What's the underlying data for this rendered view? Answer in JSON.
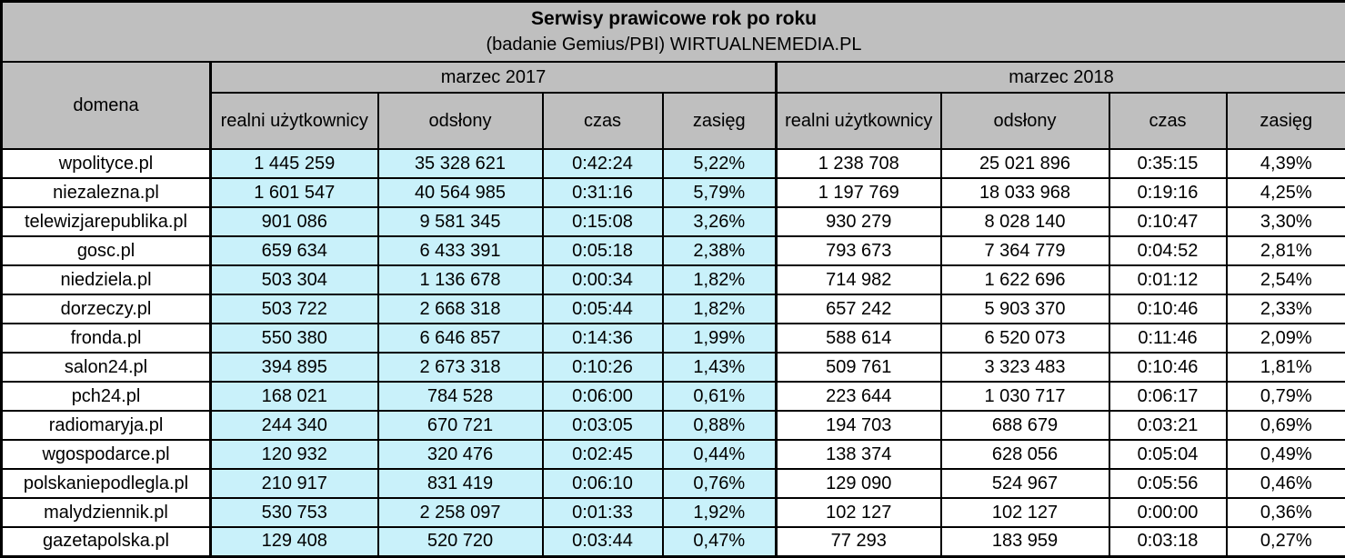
{
  "colors": {
    "header_bg": "#bfbfbf",
    "highlight_2017_bg": "#c9f1fa",
    "default_row_bg": "#ffffff",
    "border": "#000000",
    "text": "#000000"
  },
  "chart_data": {
    "type": "table",
    "title": "Serwisy prawicowe rok po roku",
    "subtitle": "(badanie Gemius/PBI) WIRTUALNEMEDIA.PL",
    "domain_column_header": "domena",
    "groups": [
      {
        "label": "marzec 2017",
        "sub_headers": [
          "realni użytkownicy",
          "odsłony",
          "czas",
          "zasięg"
        ]
      },
      {
        "label": "marzec 2018",
        "sub_headers": [
          "realni użytkownicy",
          "odsłony",
          "czas",
          "zasięg"
        ]
      }
    ],
    "rows": [
      {
        "domena": "wpolityce.pl",
        "values_2017": [
          "1 445 259",
          "35 328 621",
          "0:42:24",
          "5,22%"
        ],
        "values_2018": [
          "1 238 708",
          "25 021 896",
          "0:35:15",
          "4,39%"
        ]
      },
      {
        "domena": "niezalezna.pl",
        "values_2017": [
          "1 601 547",
          "40 564 985",
          "0:31:16",
          "5,79%"
        ],
        "values_2018": [
          "1 197 769",
          "18 033 968",
          "0:19:16",
          "4,25%"
        ]
      },
      {
        "domena": "telewizjarepublika.pl",
        "values_2017": [
          "901 086",
          "9 581 345",
          "0:15:08",
          "3,26%"
        ],
        "values_2018": [
          "930 279",
          "8 028 140",
          "0:10:47",
          "3,30%"
        ]
      },
      {
        "domena": "gosc.pl",
        "values_2017": [
          "659 634",
          "6 433 391",
          "0:05:18",
          "2,38%"
        ],
        "values_2018": [
          "793 673",
          "7 364 779",
          "0:04:52",
          "2,81%"
        ]
      },
      {
        "domena": "niedziela.pl",
        "values_2017": [
          "503 304",
          "1 136 678",
          "0:00:34",
          "1,82%"
        ],
        "values_2018": [
          "714 982",
          "1 622 696",
          "0:01:12",
          "2,54%"
        ]
      },
      {
        "domena": "dorzeczy.pl",
        "values_2017": [
          "503 722",
          "2 668 318",
          "0:05:44",
          "1,82%"
        ],
        "values_2018": [
          "657 242",
          "5 903 370",
          "0:10:46",
          "2,33%"
        ]
      },
      {
        "domena": "fronda.pl",
        "values_2017": [
          "550 380",
          "6 646 857",
          "0:14:36",
          "1,99%"
        ],
        "values_2018": [
          "588 614",
          "6 520 073",
          "0:11:46",
          "2,09%"
        ]
      },
      {
        "domena": "salon24.pl",
        "values_2017": [
          "394 895",
          "2 673 318",
          "0:10:26",
          "1,43%"
        ],
        "values_2018": [
          "509 761",
          "3 323 483",
          "0:10:46",
          "1,81%"
        ]
      },
      {
        "domena": "pch24.pl",
        "values_2017": [
          "168 021",
          "784 528",
          "0:06:00",
          "0,61%"
        ],
        "values_2018": [
          "223 644",
          "1 030 717",
          "0:06:17",
          "0,79%"
        ]
      },
      {
        "domena": "radiomaryja.pl",
        "values_2017": [
          "244 340",
          "670 721",
          "0:03:05",
          "0,88%"
        ],
        "values_2018": [
          "194 703",
          "688 679",
          "0:03:21",
          "0,69%"
        ]
      },
      {
        "domena": "wgospodarce.pl",
        "values_2017": [
          "120 932",
          "320 476",
          "0:02:45",
          "0,44%"
        ],
        "values_2018": [
          "138 374",
          "628 056",
          "0:05:04",
          "0,49%"
        ]
      },
      {
        "domena": "polskaniepodlegla.pl",
        "values_2017": [
          "210 917",
          "831 419",
          "0:06:10",
          "0,76%"
        ],
        "values_2018": [
          "129 090",
          "524 967",
          "0:05:56",
          "0,46%"
        ]
      },
      {
        "domena": "malydziennik.pl",
        "values_2017": [
          "530 753",
          "2 258 097",
          "0:01:33",
          "1,92%"
        ],
        "values_2018": [
          "102 127",
          "102 127",
          "0:00:00",
          "0,36%"
        ]
      },
      {
        "domena": "gazetapolska.pl",
        "values_2017": [
          "129 408",
          "520 720",
          "0:03:44",
          "0,47%"
        ],
        "values_2018": [
          "77 293",
          "183 959",
          "0:03:18",
          "0,27%"
        ]
      }
    ]
  }
}
